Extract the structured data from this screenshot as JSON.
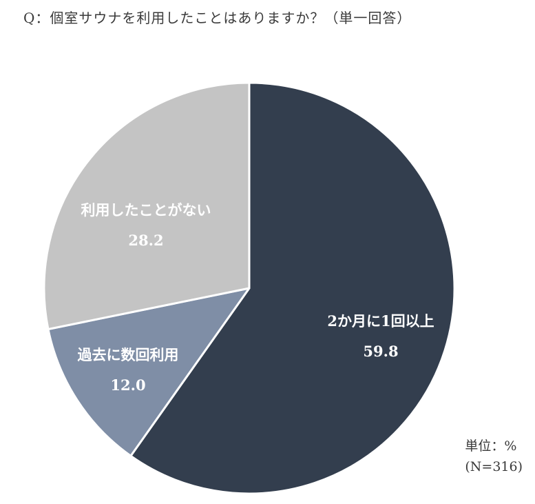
{
  "question": "Q：個室サウナを利用したことはありますか？（単一回答）",
  "note": {
    "unit": "単位：%",
    "sample": "(N=316)"
  },
  "colors": {
    "slice_1": "#333e4e",
    "slice_2": "#7f8ea6",
    "slice_3": "#c4c4c4",
    "label_text": "#ffffff",
    "separator": "#ffffff"
  },
  "chart_data": {
    "type": "pie",
    "start": "12 o'clock",
    "direction": "clockwise",
    "categories": [
      "2か月に1回以上",
      "過去に数回利用",
      "利用したことがない"
    ],
    "values": [
      59.8,
      12.0,
      28.2
    ],
    "value_labels": [
      "59.8",
      "12.0",
      "28.2"
    ],
    "unit": "%",
    "n": 316
  }
}
